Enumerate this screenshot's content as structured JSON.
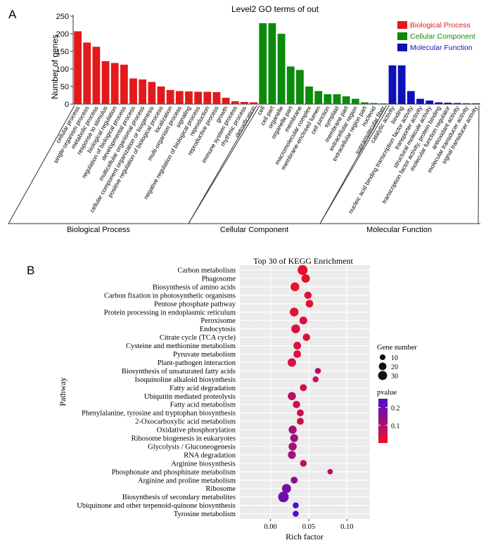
{
  "chart_data": [
    {
      "panel": "A",
      "type": "bar",
      "title": "Level2 GO terms of out",
      "ylabel": "Number of genes",
      "xlabel": "",
      "ylim": [
        0,
        250
      ],
      "yticks": [
        0,
        50,
        100,
        150,
        200,
        250
      ],
      "legend_position": "top-right",
      "series": [
        {
          "name": "Biological Process",
          "color": "#e31a1c",
          "categories": [
            "cellular process",
            "single-organism process",
            "metabolic process",
            "response to stimulus",
            "biological regulation",
            "regulation of biological process",
            "developmental process",
            "multicellular organismal process",
            "cellular component organization or biogenesis",
            "positive regulation of biological process",
            "localization",
            "multi-organism process",
            "signaling",
            "negative regulation of biological process",
            "reproduction",
            "reproductive process",
            "growth",
            "immune system process",
            "rhythmic process",
            "detoxification"
          ],
          "values": [
            207,
            175,
            163,
            122,
            117,
            112,
            73,
            70,
            63,
            50,
            40,
            37,
            36,
            35,
            35,
            34,
            18,
            8,
            6,
            5
          ]
        },
        {
          "name": "Cellular Component",
          "color": "#0b8a0b",
          "categories": [
            "cell",
            "cell part",
            "organelle",
            "organelle part",
            "membrane",
            "macromolecular complex",
            "membrane-enclosed lumen",
            "cell junction",
            "symplast",
            "membrane part",
            "extracellular region",
            "extracellular region part",
            "nucleoid",
            "supramolecular fiber"
          ],
          "values": [
            230,
            230,
            200,
            107,
            97,
            50,
            37,
            28,
            28,
            22,
            15,
            5,
            3,
            2
          ]
        },
        {
          "name": "Molecular Function",
          "color": "#1010b8",
          "categories": [
            "catalytic activity",
            "binding",
            "nucleic acid binding transcription factor activity",
            "transporter activity",
            "structural molecule activity",
            "transcription factor activity, protein binding",
            "molecular function regulator",
            "antioxidant activity",
            "molecular transducer activity",
            "signal transducer activity"
          ],
          "values": [
            110,
            110,
            37,
            15,
            10,
            5,
            4,
            3,
            2,
            2
          ]
        }
      ],
      "group_labels": [
        "Biological Process",
        "Cellular Component",
        "Molecular Function"
      ]
    },
    {
      "panel": "B",
      "type": "scatter",
      "title": "Top 30 of KEGG Enrichment",
      "xlabel": "Rich factor",
      "ylabel": "Pathway",
      "xlim": [
        -0.04,
        0.13
      ],
      "xticks": [
        0.0,
        0.05,
        0.1
      ],
      "xtick_labels": [
        "0.00",
        "0.05",
        "0.10"
      ],
      "size_legend": {
        "title": "Gene number",
        "values": [
          10,
          20,
          30
        ],
        "labels": [
          "10",
          "20",
          "30"
        ]
      },
      "color_legend": {
        "title": "pvalue",
        "range": [
          0.0,
          0.25
        ],
        "ticks": [
          0.1,
          0.2
        ],
        "tick_labels": [
          "0.1",
          "0.2"
        ],
        "low_color": "#ee1128",
        "high_color": "#4b0fd0"
      },
      "pathways": [
        "Carbon metabolism",
        "Phagosome",
        "Biosynthesis of amino acids",
        "Carbon fixation in photosynthetic organisms",
        "Pentose phosphate pathway",
        "Protein processing in endoplasmic reticulum",
        "Peroxisome",
        "Endocytosis",
        "Citrate cycle (TCA cycle)",
        "Cysteine and methionine metabolism",
        "Pyruvate metabolism",
        "Plant-pathogen interaction",
        "Biosynthesis of unsaturated fatty acids",
        "Isoquinoline alkaloid biosynthesis",
        "Fatty acid degradation",
        "Ubiquitin mediated proteolysis",
        "Fatty acid metabolism",
        "Phenylalanine, tyrosine and tryptophan biosynthesis",
        "2-Oxocarboxylic acid metabolism",
        "Oxidative phosphorylation",
        "Ribosome biogenesis in eukaryotes",
        "Glycolysis / Gluconeogenesis",
        "RNA degradation",
        "Arginine biosynthesis",
        "Phosphonate and phosphinate metabolism",
        "Arginine and proline metabolism",
        "Ribosome",
        "Biosynthesis of secondary metabolites",
        "Ubiquinone and other terpenoid-quinone biosynthesis",
        "Tyrosine metabolism"
      ],
      "rich_factor": [
        0.042,
        0.046,
        0.032,
        0.049,
        0.051,
        0.031,
        0.043,
        0.033,
        0.047,
        0.035,
        0.035,
        0.028,
        0.062,
        0.059,
        0.043,
        0.028,
        0.034,
        0.039,
        0.039,
        0.029,
        0.031,
        0.029,
        0.028,
        0.043,
        0.078,
        0.031,
        0.021,
        0.017,
        0.033,
        0.033
      ],
      "gene_number": [
        30,
        20,
        22,
        14,
        15,
        22,
        16,
        22,
        14,
        16,
        15,
        20,
        8,
        8,
        12,
        18,
        14,
        12,
        12,
        18,
        17,
        18,
        17,
        11,
        6,
        12,
        24,
        35,
        8,
        8
      ],
      "pvalue": [
        0.01,
        0.01,
        0.01,
        0.02,
        0.02,
        0.02,
        0.03,
        0.03,
        0.03,
        0.03,
        0.03,
        0.04,
        0.09,
        0.06,
        0.05,
        0.08,
        0.05,
        0.06,
        0.06,
        0.11,
        0.12,
        0.11,
        0.12,
        0.07,
        0.09,
        0.15,
        0.19,
        0.2,
        0.25,
        0.25
      ]
    }
  ],
  "panel_labels": {
    "a": "A",
    "b": "B"
  }
}
